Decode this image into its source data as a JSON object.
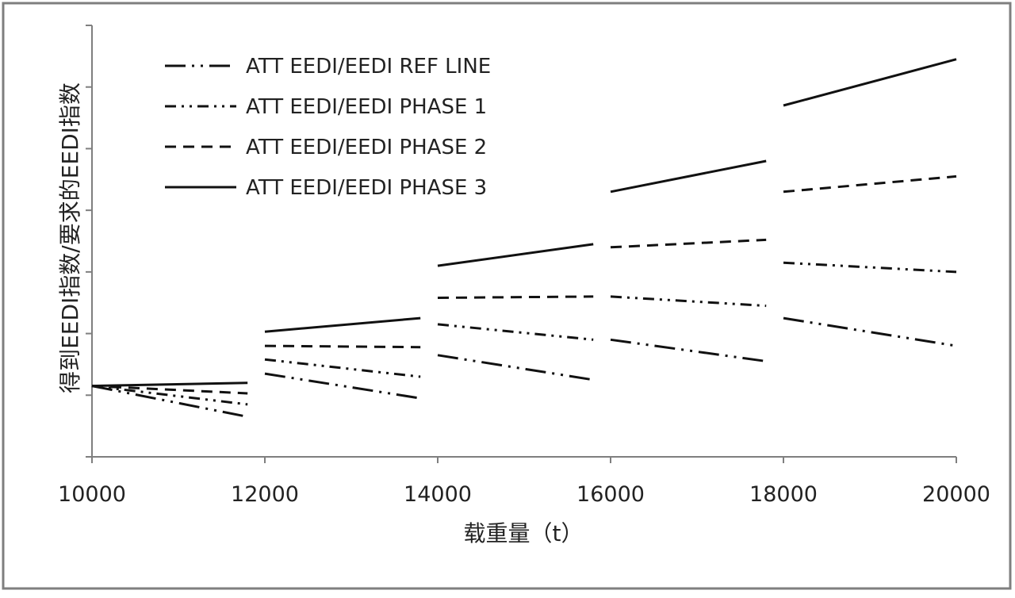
{
  "chart_data": {
    "type": "line",
    "xlabel": "载重量（t）",
    "ylabel": "得到EEDI指数/要求的EEDI指数",
    "xlim": [
      10000,
      20000
    ],
    "ylim": [
      0,
      7
    ],
    "x_ticks": [
      10000,
      12000,
      14000,
      16000,
      18000,
      20000
    ],
    "x_tick_labels": [
      "10000",
      "12000",
      "14000",
      "16000",
      "18000",
      "20000"
    ],
    "y_ticks": [
      0,
      1,
      2,
      3,
      4,
      5,
      6,
      7
    ],
    "grid": false,
    "legend_placement": "top-left",
    "series": [
      {
        "name": "ATT EEDI/EEDI REF LINE",
        "dash": "long-dash-dot-dot",
        "segments": [
          {
            "x": [
              10000,
              11800
            ],
            "y": [
              1.15,
              0.65
            ]
          },
          {
            "x": [
              12000,
              13800
            ],
            "y": [
              1.35,
              0.95
            ]
          },
          {
            "x": [
              14000,
              15800
            ],
            "y": [
              1.65,
              1.25
            ]
          },
          {
            "x": [
              16000,
              17800
            ],
            "y": [
              1.9,
              1.55
            ]
          },
          {
            "x": [
              18000,
              20000
            ],
            "y": [
              2.25,
              1.8
            ]
          }
        ]
      },
      {
        "name": "ATT EEDI/EEDI PHASE 1",
        "dash": "dash-dot-dot",
        "segments": [
          {
            "x": [
              10000,
              11800
            ],
            "y": [
              1.15,
              0.85
            ]
          },
          {
            "x": [
              12000,
              13800
            ],
            "y": [
              1.58,
              1.3
            ]
          },
          {
            "x": [
              14000,
              15800
            ],
            "y": [
              2.15,
              1.9
            ]
          },
          {
            "x": [
              16000,
              17800
            ],
            "y": [
              2.6,
              2.45
            ]
          },
          {
            "x": [
              18000,
              20000
            ],
            "y": [
              3.15,
              3.0
            ]
          }
        ]
      },
      {
        "name": "ATT EEDI/EEDI PHASE 2",
        "dash": "short-dash",
        "segments": [
          {
            "x": [
              10000,
              11800
            ],
            "y": [
              1.15,
              1.03
            ]
          },
          {
            "x": [
              12000,
              13800
            ],
            "y": [
              1.8,
              1.78
            ]
          },
          {
            "x": [
              14000,
              15800
            ],
            "y": [
              2.58,
              2.6
            ]
          },
          {
            "x": [
              16000,
              17800
            ],
            "y": [
              3.4,
              3.52
            ]
          },
          {
            "x": [
              18000,
              20000
            ],
            "y": [
              4.3,
              4.55
            ]
          }
        ]
      },
      {
        "name": "ATT EEDI/EEDI PHASE 3",
        "dash": "solid",
        "segments": [
          {
            "x": [
              10000,
              11800
            ],
            "y": [
              1.15,
              1.2
            ]
          },
          {
            "x": [
              12000,
              13800
            ],
            "y": [
              2.03,
              2.25
            ]
          },
          {
            "x": [
              14000,
              15800
            ],
            "y": [
              3.1,
              3.45
            ]
          },
          {
            "x": [
              16000,
              17800
            ],
            "y": [
              4.3,
              4.8
            ]
          },
          {
            "x": [
              18000,
              20000
            ],
            "y": [
              5.7,
              6.45
            ]
          }
        ]
      }
    ]
  }
}
